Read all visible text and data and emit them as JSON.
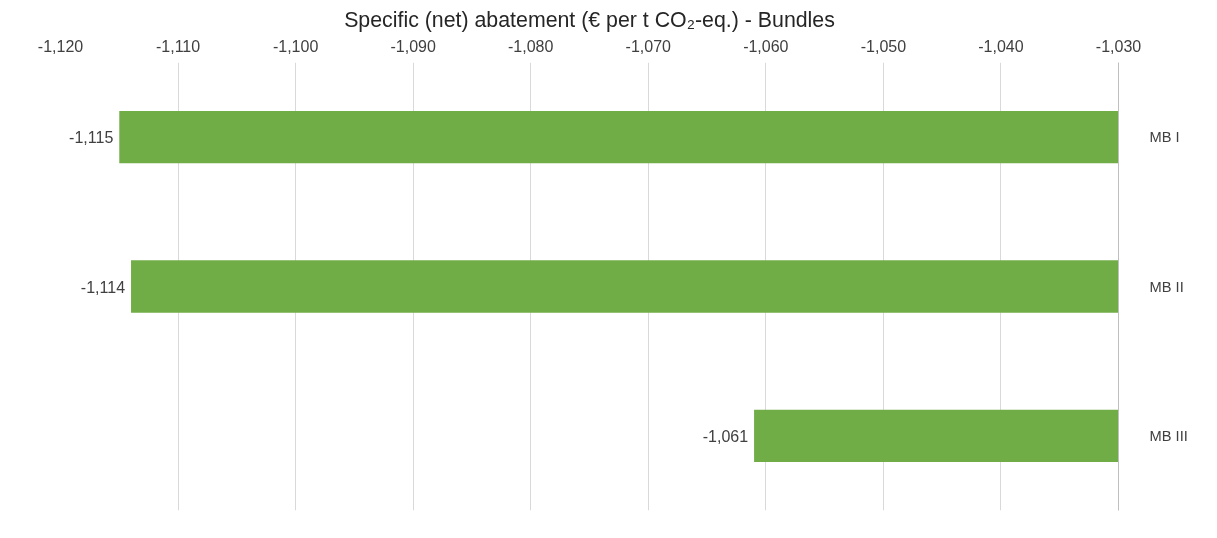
{
  "chart_data": {
    "type": "bar",
    "orientation": "horizontal",
    "title": "Specific (net) abatement (€ per t CO₂-eq.) - Bundles",
    "categories": [
      "MB I",
      "MB II",
      "MB III"
    ],
    "values": [
      -1115,
      -1114,
      -1061
    ],
    "color": "#70ad47",
    "value_labels": [
      "-1,115",
      "-1,114",
      "-1,061"
    ],
    "xlim": [
      -1120,
      -1030
    ],
    "xticks": [
      {
        "value": -1120,
        "label": "-1,120"
      },
      {
        "value": -1110,
        "label": "-1,110"
      },
      {
        "value": -1100,
        "label": "-1,100"
      },
      {
        "value": -1090,
        "label": "-1,090"
      },
      {
        "value": -1080,
        "label": "-1,080"
      },
      {
        "value": -1070,
        "label": "-1,070"
      },
      {
        "value": -1060,
        "label": "-1,060"
      },
      {
        "value": -1050,
        "label": "-1,050"
      },
      {
        "value": -1040,
        "label": "-1,040"
      },
      {
        "value": -1030,
        "label": "-1,030"
      }
    ],
    "grid": "x"
  }
}
